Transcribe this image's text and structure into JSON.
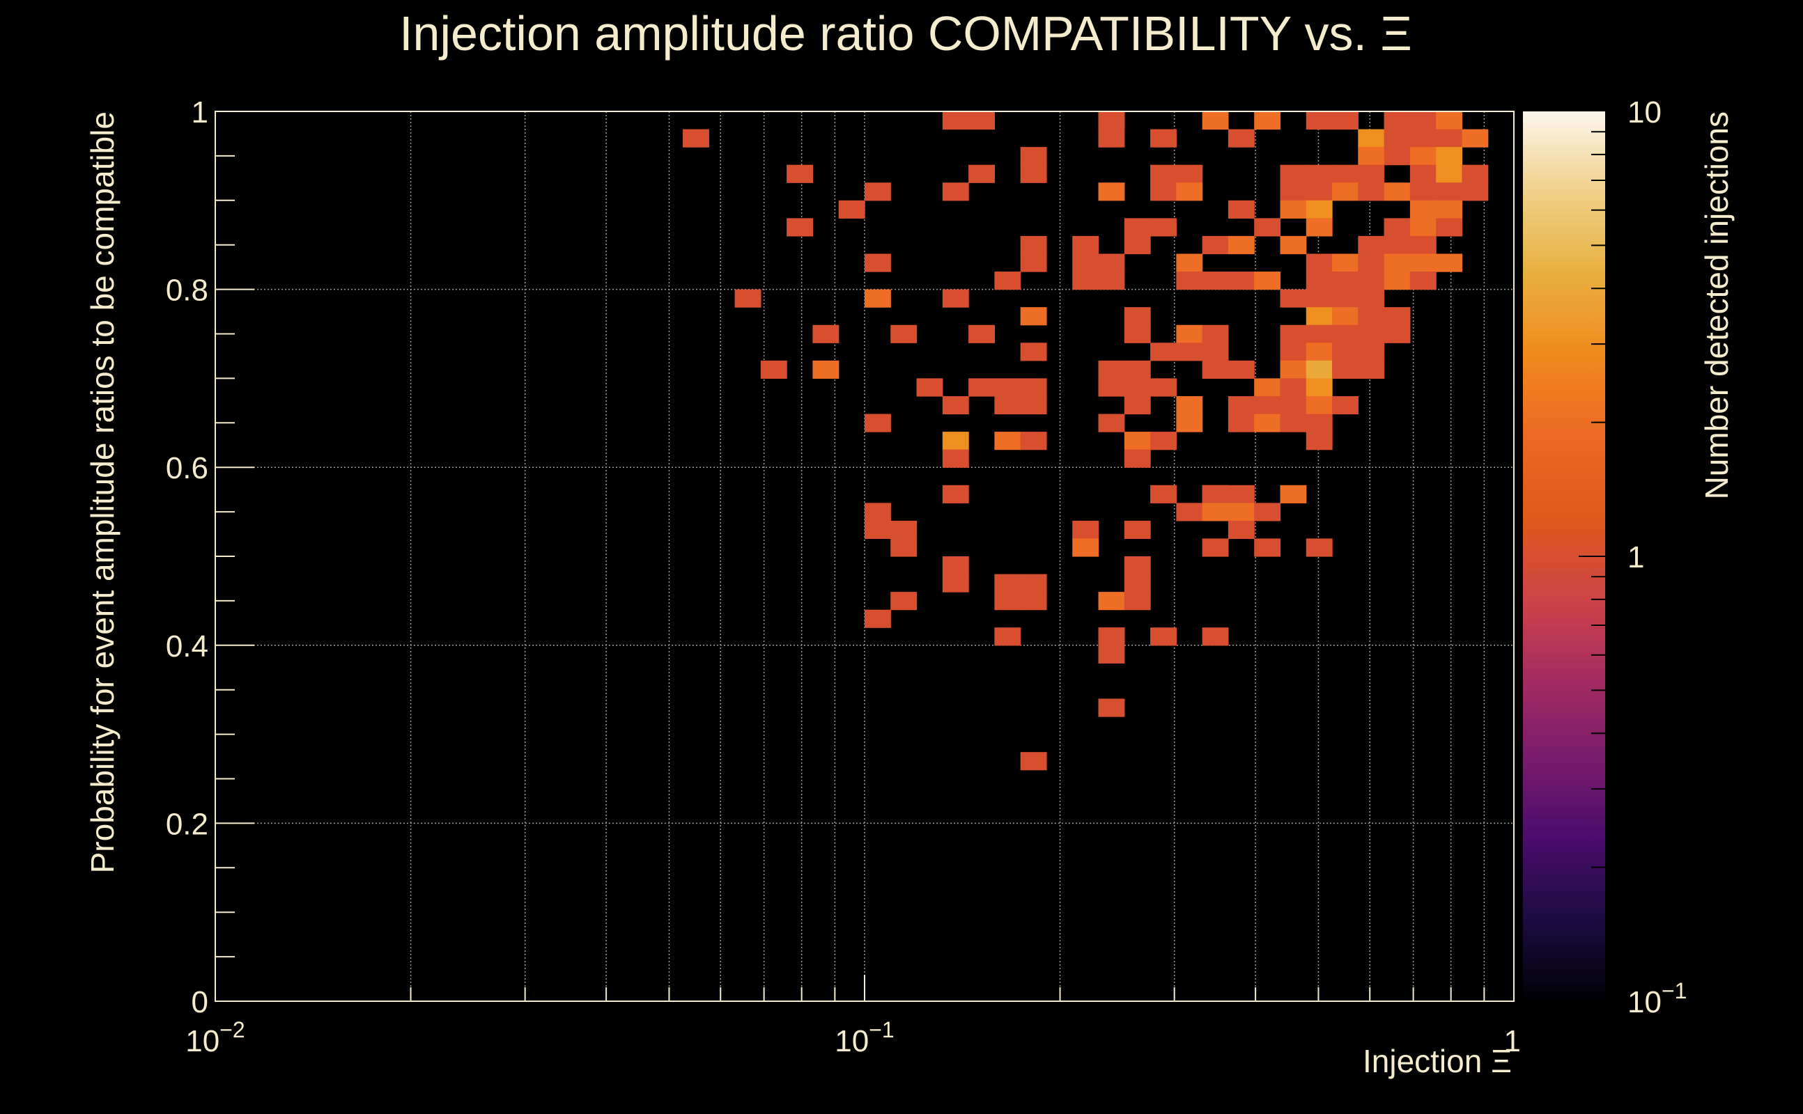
{
  "chart_data": {
    "type": "heatmap",
    "title": "Injection amplitude ratio COMPATIBILITY vs.  Ξ",
    "xlabel": "Injection Ξ",
    "ylabel": "Probability for event amplitude ratios to be compatible",
    "zlabel": "Number detected injections",
    "x_scale": "log",
    "y_scale": "linear",
    "z_scale": "log",
    "xlim": [
      0.01,
      1
    ],
    "ylim": [
      0,
      1
    ],
    "zlim": [
      0.1,
      10
    ],
    "grid": true,
    "x_ticks": [
      {
        "value": 0.01,
        "mantissa": "10",
        "exp": "−2"
      },
      {
        "value": 0.1,
        "mantissa": "10",
        "exp": "−1"
      },
      {
        "value": 1,
        "mantissa": "1",
        "exp": ""
      }
    ],
    "y_ticks": [
      {
        "value": 0,
        "label": "0"
      },
      {
        "value": 0.2,
        "label": "0.2"
      },
      {
        "value": 0.4,
        "label": "0.4"
      },
      {
        "value": 0.6,
        "label": "0.6"
      },
      {
        "value": 0.8,
        "label": "0.8"
      },
      {
        "value": 1,
        "label": "1"
      }
    ],
    "z_ticks": [
      {
        "value": 0.1,
        "mantissa": "10",
        "exp": "−1"
      },
      {
        "value": 1,
        "mantissa": "1",
        "exp": ""
      },
      {
        "value": 10,
        "mantissa": "10",
        "exp": ""
      }
    ],
    "x_bins": 50,
    "y_bins": 50,
    "colormap": [
      "#000004",
      "#1b0c41",
      "#4a0c6b",
      "#781c6d",
      "#a52c60",
      "#cf4446",
      "#e05a1a",
      "#ed6925",
      "#f08a1c",
      "#e8b040",
      "#f0d088",
      "#fcf6ec"
    ],
    "cells": [
      [
        0.23,
        1.0,
        1
      ],
      [
        0.25,
        1.0,
        1
      ],
      [
        0.73,
        1.0,
        1
      ],
      [
        0.14,
        0.98,
        1
      ],
      [
        0.155,
        0.98,
        1
      ],
      [
        0.34,
        0.98,
        2
      ],
      [
        0.42,
        0.98,
        2
      ],
      [
        0.5,
        0.98,
        1
      ],
      [
        0.55,
        0.98,
        1
      ],
      [
        0.66,
        0.98,
        1
      ],
      [
        0.78,
        0.98,
        2
      ],
      [
        0.056,
        0.96,
        1
      ],
      [
        0.23,
        0.96,
        1
      ],
      [
        0.29,
        0.96,
        1
      ],
      [
        0.37,
        0.96,
        1
      ],
      [
        0.6,
        0.96,
        3
      ],
      [
        0.66,
        0.96,
        1
      ],
      [
        0.73,
        0.96,
        1
      ],
      [
        0.78,
        0.96,
        1
      ],
      [
        0.86,
        0.96,
        2
      ],
      [
        0.19,
        0.94,
        1
      ],
      [
        0.6,
        0.94,
        2
      ],
      [
        0.66,
        0.94,
        1
      ],
      [
        0.73,
        0.94,
        2
      ],
      [
        0.78,
        0.94,
        3
      ],
      [
        0.08,
        0.92,
        1
      ],
      [
        0.155,
        0.92,
        1
      ],
      [
        0.19,
        0.92,
        1
      ],
      [
        0.29,
        0.92,
        1
      ],
      [
        0.32,
        0.92,
        1
      ],
      [
        0.45,
        0.92,
        1
      ],
      [
        0.5,
        0.92,
        1
      ],
      [
        0.55,
        0.92,
        1
      ],
      [
        0.6,
        0.92,
        1
      ],
      [
        0.73,
        0.92,
        1
      ],
      [
        0.78,
        0.92,
        3
      ],
      [
        0.86,
        0.92,
        1
      ],
      [
        0.105,
        0.9,
        1
      ],
      [
        0.14,
        0.9,
        1
      ],
      [
        0.25,
        0.9,
        2
      ],
      [
        0.29,
        0.9,
        1
      ],
      [
        0.32,
        0.9,
        2
      ],
      [
        0.45,
        0.9,
        1
      ],
      [
        0.5,
        0.9,
        1
      ],
      [
        0.55,
        0.9,
        2
      ],
      [
        0.6,
        0.9,
        1
      ],
      [
        0.66,
        0.9,
        2
      ],
      [
        0.73,
        0.9,
        1
      ],
      [
        0.78,
        0.9,
        1
      ],
      [
        0.86,
        0.9,
        1
      ],
      [
        0.093,
        0.88,
        1
      ],
      [
        0.37,
        0.88,
        1
      ],
      [
        0.45,
        0.88,
        2
      ],
      [
        0.5,
        0.88,
        3
      ],
      [
        0.73,
        0.88,
        2
      ],
      [
        0.78,
        0.88,
        2
      ],
      [
        0.08,
        0.86,
        1
      ],
      [
        0.26,
        0.86,
        1
      ],
      [
        0.29,
        0.86,
        1
      ],
      [
        0.41,
        0.86,
        1
      ],
      [
        0.5,
        0.86,
        2
      ],
      [
        0.66,
        0.86,
        1
      ],
      [
        0.73,
        0.86,
        2
      ],
      [
        0.78,
        0.86,
        1
      ],
      [
        0.19,
        0.84,
        1
      ],
      [
        0.21,
        0.84,
        1
      ],
      [
        0.26,
        0.84,
        1
      ],
      [
        0.34,
        0.84,
        1
      ],
      [
        0.37,
        0.84,
        2
      ],
      [
        0.45,
        0.84,
        2
      ],
      [
        0.6,
        0.84,
        1
      ],
      [
        0.66,
        0.84,
        1
      ],
      [
        0.73,
        0.84,
        1
      ],
      [
        0.105,
        0.82,
        1
      ],
      [
        0.19,
        0.82,
        1
      ],
      [
        0.21,
        0.82,
        1
      ],
      [
        0.23,
        0.82,
        1
      ],
      [
        0.32,
        0.82,
        2
      ],
      [
        0.5,
        0.82,
        1
      ],
      [
        0.55,
        0.82,
        2
      ],
      [
        0.6,
        0.82,
        1
      ],
      [
        0.66,
        0.82,
        2
      ],
      [
        0.73,
        0.82,
        2
      ],
      [
        0.78,
        0.82,
        2
      ],
      [
        0.17,
        0.8,
        1
      ],
      [
        0.21,
        0.8,
        1
      ],
      [
        0.23,
        0.8,
        1
      ],
      [
        0.32,
        0.8,
        1
      ],
      [
        0.34,
        0.8,
        1
      ],
      [
        0.37,
        0.8,
        1
      ],
      [
        0.41,
        0.8,
        2
      ],
      [
        0.5,
        0.8,
        1
      ],
      [
        0.55,
        0.8,
        1
      ],
      [
        0.6,
        0.8,
        1
      ],
      [
        0.66,
        0.8,
        2
      ],
      [
        0.73,
        0.8,
        1
      ],
      [
        0.068,
        0.78,
        1
      ],
      [
        0.105,
        0.78,
        2
      ],
      [
        0.14,
        0.78,
        1
      ],
      [
        0.45,
        0.78,
        1
      ],
      [
        0.5,
        0.78,
        1
      ],
      [
        0.55,
        0.78,
        1
      ],
      [
        0.6,
        0.78,
        1
      ],
      [
        0.19,
        0.76,
        2
      ],
      [
        0.26,
        0.76,
        1
      ],
      [
        0.5,
        0.76,
        3
      ],
      [
        0.55,
        0.76,
        2
      ],
      [
        0.6,
        0.76,
        1
      ],
      [
        0.66,
        0.76,
        1
      ],
      [
        0.085,
        0.74,
        1
      ],
      [
        0.115,
        0.74,
        1
      ],
      [
        0.155,
        0.74,
        1
      ],
      [
        0.26,
        0.74,
        1
      ],
      [
        0.32,
        0.74,
        2
      ],
      [
        0.34,
        0.74,
        1
      ],
      [
        0.45,
        0.74,
        1
      ],
      [
        0.5,
        0.74,
        1
      ],
      [
        0.55,
        0.74,
        1
      ],
      [
        0.6,
        0.74,
        1
      ],
      [
        0.66,
        0.74,
        1
      ],
      [
        0.19,
        0.72,
        1
      ],
      [
        0.29,
        0.72,
        1
      ],
      [
        0.32,
        0.72,
        1
      ],
      [
        0.34,
        0.72,
        1
      ],
      [
        0.45,
        0.72,
        1
      ],
      [
        0.5,
        0.72,
        2
      ],
      [
        0.55,
        0.72,
        1
      ],
      [
        0.6,
        0.72,
        1
      ],
      [
        0.074,
        0.7,
        1
      ],
      [
        0.085,
        0.7,
        2
      ],
      [
        0.25,
        0.7,
        1
      ],
      [
        0.26,
        0.7,
        1
      ],
      [
        0.34,
        0.7,
        1
      ],
      [
        0.37,
        0.7,
        1
      ],
      [
        0.45,
        0.7,
        2
      ],
      [
        0.5,
        0.7,
        4
      ],
      [
        0.55,
        0.7,
        1
      ],
      [
        0.6,
        0.7,
        1
      ],
      [
        0.125,
        0.68,
        1
      ],
      [
        0.155,
        0.68,
        1
      ],
      [
        0.17,
        0.68,
        1
      ],
      [
        0.19,
        0.68,
        1
      ],
      [
        0.23,
        0.68,
        1
      ],
      [
        0.25,
        0.68,
        1
      ],
      [
        0.26,
        0.68,
        1
      ],
      [
        0.29,
        0.68,
        1
      ],
      [
        0.41,
        0.68,
        2
      ],
      [
        0.45,
        0.68,
        1
      ],
      [
        0.5,
        0.68,
        3
      ],
      [
        0.14,
        0.66,
        1
      ],
      [
        0.17,
        0.66,
        1
      ],
      [
        0.19,
        0.66,
        1
      ],
      [
        0.26,
        0.66,
        1
      ],
      [
        0.32,
        0.66,
        2
      ],
      [
        0.37,
        0.66,
        1
      ],
      [
        0.41,
        0.66,
        1
      ],
      [
        0.45,
        0.66,
        1
      ],
      [
        0.5,
        0.66,
        2
      ],
      [
        0.55,
        0.66,
        1
      ],
      [
        0.105,
        0.64,
        1
      ],
      [
        0.25,
        0.64,
        1
      ],
      [
        0.32,
        0.64,
        2
      ],
      [
        0.37,
        0.64,
        1
      ],
      [
        0.41,
        0.64,
        2
      ],
      [
        0.45,
        0.64,
        1
      ],
      [
        0.5,
        0.64,
        1
      ],
      [
        0.14,
        0.62,
        3
      ],
      [
        0.17,
        0.62,
        2
      ],
      [
        0.19,
        0.62,
        1
      ],
      [
        0.26,
        0.62,
        2
      ],
      [
        0.29,
        0.62,
        1
      ],
      [
        0.5,
        0.62,
        1
      ],
      [
        0.14,
        0.6,
        1
      ],
      [
        0.26,
        0.6,
        1
      ],
      [
        0.14,
        0.58,
        1
      ],
      [
        0.29,
        0.58,
        1
      ],
      [
        0.34,
        0.58,
        2
      ],
      [
        0.37,
        0.58,
        1
      ],
      [
        0.45,
        0.58,
        2
      ],
      [
        0.34,
        0.56,
        1
      ],
      [
        0.105,
        0.54,
        1
      ],
      [
        0.32,
        0.54,
        1
      ],
      [
        0.34,
        0.54,
        2
      ],
      [
        0.37,
        0.54,
        2
      ],
      [
        0.41,
        0.54,
        1
      ],
      [
        0.105,
        0.52,
        1
      ],
      [
        0.115,
        0.52,
        1
      ],
      [
        0.21,
        0.52,
        1
      ],
      [
        0.26,
        0.52,
        1
      ],
      [
        0.37,
        0.52,
        1
      ],
      [
        0.115,
        0.5,
        1
      ],
      [
        0.21,
        0.5,
        2
      ],
      [
        0.34,
        0.5,
        1
      ],
      [
        0.41,
        0.5,
        1
      ],
      [
        0.5,
        0.5,
        1
      ],
      [
        0.14,
        0.48,
        1
      ],
      [
        0.26,
        0.48,
        1
      ],
      [
        0.14,
        0.46,
        1
      ],
      [
        0.17,
        0.46,
        1
      ],
      [
        0.19,
        0.46,
        1
      ],
      [
        0.26,
        0.46,
        1
      ],
      [
        0.115,
        0.44,
        1
      ],
      [
        0.17,
        0.44,
        1
      ],
      [
        0.19,
        0.44,
        1
      ],
      [
        0.25,
        0.44,
        2
      ],
      [
        0.26,
        0.44,
        1
      ],
      [
        0.105,
        0.42,
        1
      ],
      [
        0.17,
        0.4,
        1
      ],
      [
        0.23,
        0.4,
        1
      ],
      [
        0.25,
        0.4,
        1
      ],
      [
        0.29,
        0.4,
        1
      ],
      [
        0.34,
        0.4,
        1
      ],
      [
        0.23,
        0.38,
        1
      ],
      [
        0.25,
        0.32,
        1
      ],
      [
        0.19,
        0.26,
        1
      ]
    ]
  }
}
